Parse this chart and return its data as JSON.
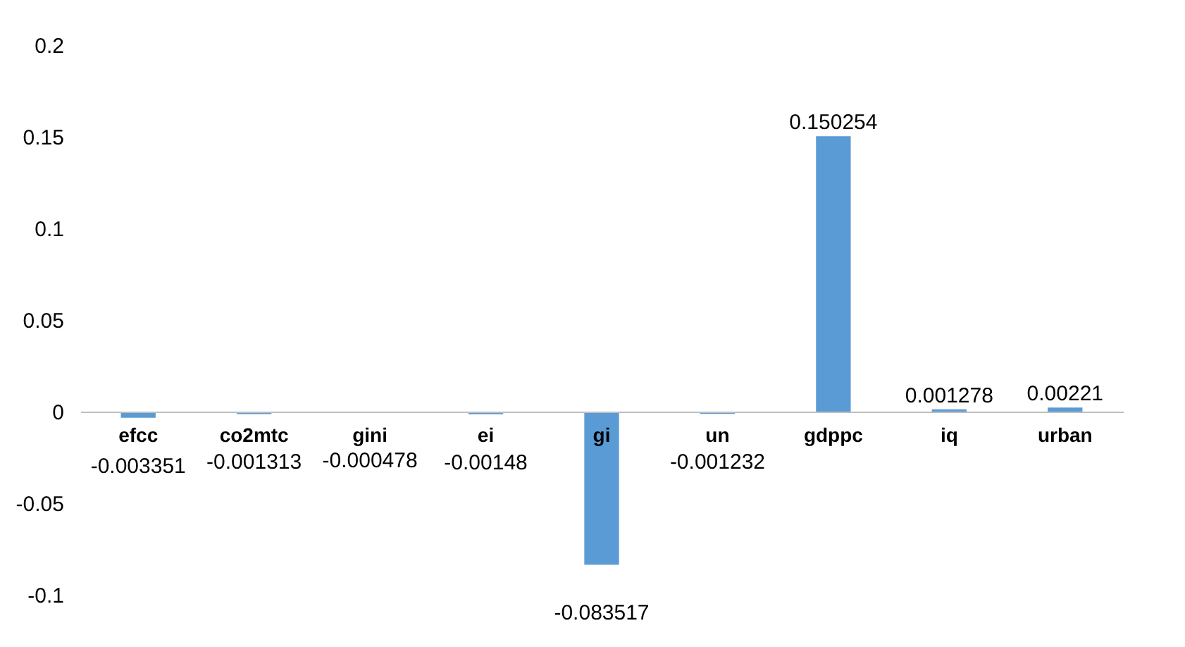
{
  "chart_data": {
    "type": "bar",
    "categories": [
      "efcc",
      "co2mtc",
      "gini",
      "ei",
      "gi",
      "un",
      "gdppc",
      "iq",
      "urban"
    ],
    "values": [
      -0.003351,
      -0.001313,
      -0.000478,
      -0.00148,
      -0.083517,
      -0.001232,
      0.150254,
      0.001278,
      0.00221
    ],
    "color": "#5b9bd5",
    "ylim": [
      -0.1,
      0.2
    ],
    "yticks": [
      -0.1,
      -0.05,
      0,
      0.05,
      0.1,
      0.15,
      0.2
    ],
    "data_labels": true,
    "grid": false
  }
}
